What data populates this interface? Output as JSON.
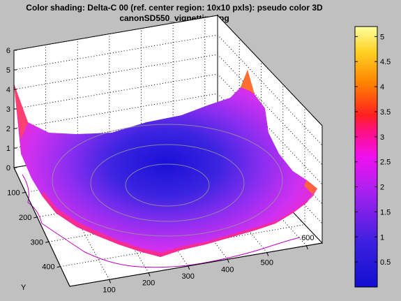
{
  "chart_data": {
    "type": "surface",
    "title": "Color shading: Delta-C 00  (ref. center region: 10x10 pxls):  pseudo color 3D",
    "subtitle": "canonSD550_vignetting.jpg",
    "xlabel": "",
    "ylabel": "Y",
    "zlabel": "",
    "x_ticks": [
      100,
      200,
      300,
      400,
      500,
      600
    ],
    "y_ticks": [
      100,
      200,
      300,
      400
    ],
    "z_ticks": [
      0,
      1,
      2,
      3,
      4,
      5,
      6
    ],
    "xlim": [
      0,
      640
    ],
    "ylim": [
      0,
      480
    ],
    "zlim": [
      0,
      6
    ],
    "colorbar": {
      "ticks": [
        0.5,
        1,
        1.5,
        2,
        2.5,
        3,
        3.5,
        4,
        4.5,
        5
      ],
      "range": [
        0,
        5.2
      ]
    },
    "grid": true,
    "colormap": "blue-purple-magenta-red-orange-yellow",
    "surface_summary": {
      "center_minimum": 0.3,
      "edge_typical": 2.5,
      "corner_peaks": [
        {
          "x": 0,
          "y": 0,
          "z": 4.2
        },
        {
          "x": 640,
          "y": 0,
          "z": 4.0
        },
        {
          "x": 640,
          "y": 480,
          "z": 3.2
        }
      ]
    }
  }
}
